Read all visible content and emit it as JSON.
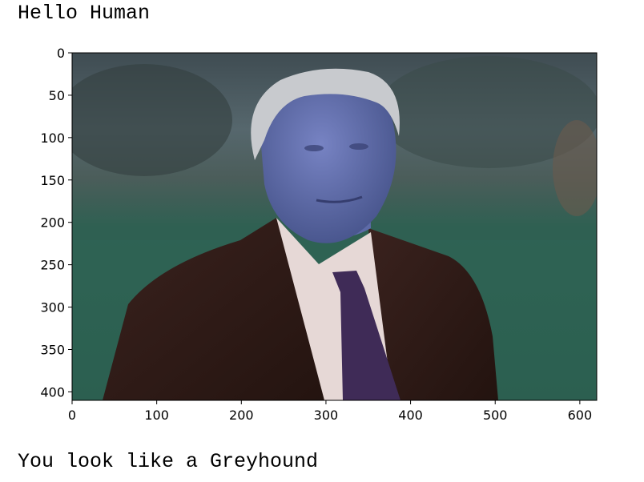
{
  "output": {
    "line1": "Hello Human",
    "line2": "You look like a Greyhound"
  },
  "image_plot": {
    "image_description_icon": "photo-of-person-in-suit-icon",
    "x_ticks": [
      "0",
      "100",
      "200",
      "300",
      "400",
      "500",
      "600"
    ],
    "y_ticks": [
      "0",
      "50",
      "100",
      "150",
      "200",
      "250",
      "300",
      "350",
      "400"
    ],
    "xlim": [
      0,
      620
    ],
    "ylim_top_to_bottom": [
      0,
      410
    ],
    "colors": {
      "sky": "#5b6a74",
      "grass": "#2f5f52",
      "face": "#5a68ad",
      "hair": "#c9cbd0",
      "jacket": "#2e1a17",
      "shirt": "#e4d6d4",
      "tie": "#3d2a55"
    }
  }
}
